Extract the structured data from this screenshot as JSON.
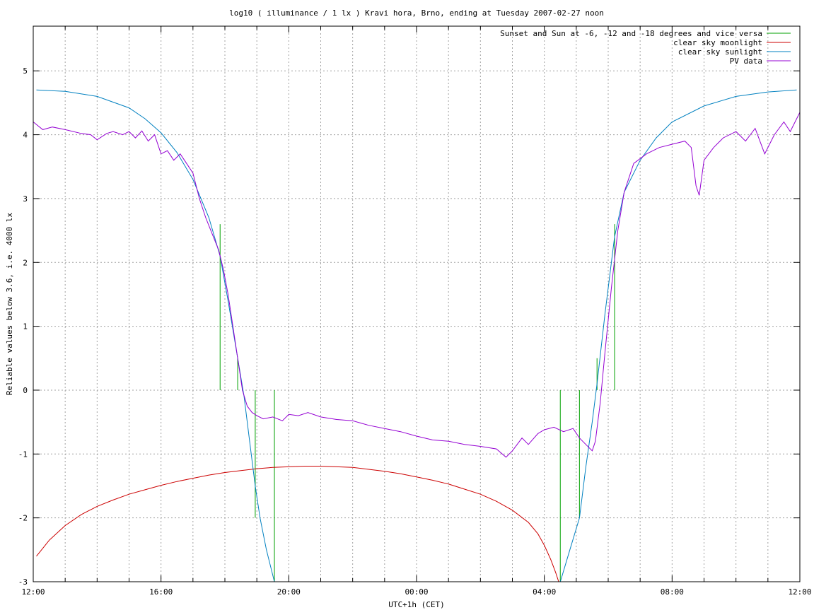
{
  "chart_data": {
    "type": "line",
    "title": "log10 ( illuminance / 1 lx ) Kravi hora, Brno, ending at Tuesday 2007-02-27 noon",
    "xlabel": "UTC+1h (CET)",
    "ylabel": "Reliable values below 3.6, i.e. 4000 lx",
    "xlim": [
      0,
      24
    ],
    "ylim": [
      -3,
      5.7
    ],
    "x_ticks": [
      {
        "v": 0,
        "label": "12:00"
      },
      {
        "v": 4,
        "label": "16:00"
      },
      {
        "v": 8,
        "label": "20:00"
      },
      {
        "v": 12,
        "label": "00:00"
      },
      {
        "v": 16,
        "label": "04:00"
      },
      {
        "v": 20,
        "label": "08:00"
      },
      {
        "v": 24,
        "label": "12:00"
      }
    ],
    "y_ticks": [
      {
        "v": -3,
        "label": "-3"
      },
      {
        "v": -2,
        "label": "-2"
      },
      {
        "v": -1,
        "label": "-1"
      },
      {
        "v": 0,
        "label": "0"
      },
      {
        "v": 1,
        "label": "1"
      },
      {
        "v": 2,
        "label": "2"
      },
      {
        "v": 3,
        "label": "3"
      },
      {
        "v": 4,
        "label": "4"
      },
      {
        "v": 5,
        "label": "5"
      }
    ],
    "grid": true,
    "legend_position": "top-right",
    "series": [
      {
        "name": "Sunset and Sun at -6, -12 and -18 degrees and vice versa",
        "color": "#00a000",
        "kind": "vlines",
        "segments": [
          {
            "x": 5.85,
            "y0": 0,
            "y1": 2.6
          },
          {
            "x": 6.4,
            "y0": 0,
            "y1": 0.5
          },
          {
            "x": 6.95,
            "y0": -2.0,
            "y1": 0
          },
          {
            "x": 7.55,
            "y0": -3,
            "y1": 0
          },
          {
            "x": 16.5,
            "y0": -3,
            "y1": 0
          },
          {
            "x": 17.1,
            "y0": -2.0,
            "y1": 0
          },
          {
            "x": 17.65,
            "y0": 0,
            "y1": 0.5
          },
          {
            "x": 18.2,
            "y0": 0,
            "y1": 2.6
          }
        ]
      },
      {
        "name": "clear sky moonlight",
        "color": "#cc0000",
        "kind": "line",
        "points": [
          [
            0.1,
            -2.6
          ],
          [
            0.5,
            -2.35
          ],
          [
            1.0,
            -2.12
          ],
          [
            1.5,
            -1.95
          ],
          [
            2.0,
            -1.82
          ],
          [
            2.5,
            -1.72
          ],
          [
            3.0,
            -1.63
          ],
          [
            3.5,
            -1.56
          ],
          [
            4.0,
            -1.49
          ],
          [
            4.5,
            -1.43
          ],
          [
            5.0,
            -1.38
          ],
          [
            5.5,
            -1.33
          ],
          [
            6.0,
            -1.29
          ],
          [
            6.5,
            -1.26
          ],
          [
            7.0,
            -1.23
          ],
          [
            7.5,
            -1.21
          ],
          [
            8.0,
            -1.2
          ],
          [
            8.5,
            -1.19
          ],
          [
            9.0,
            -1.19
          ],
          [
            9.5,
            -1.2
          ],
          [
            10.0,
            -1.21
          ],
          [
            10.5,
            -1.24
          ],
          [
            11.0,
            -1.27
          ],
          [
            11.5,
            -1.31
          ],
          [
            12.0,
            -1.36
          ],
          [
            12.5,
            -1.41
          ],
          [
            13.0,
            -1.47
          ],
          [
            13.5,
            -1.55
          ],
          [
            14.0,
            -1.63
          ],
          [
            14.5,
            -1.74
          ],
          [
            15.0,
            -1.88
          ],
          [
            15.5,
            -2.07
          ],
          [
            15.8,
            -2.25
          ],
          [
            16.0,
            -2.43
          ],
          [
            16.2,
            -2.65
          ],
          [
            16.35,
            -2.85
          ],
          [
            16.45,
            -3.0
          ]
        ]
      },
      {
        "name": "clear sky sunlight",
        "color": "#0080c0",
        "kind": "line",
        "points": [
          [
            0.1,
            4.7
          ],
          [
            1.0,
            4.68
          ],
          [
            2.0,
            4.6
          ],
          [
            3.0,
            4.42
          ],
          [
            3.5,
            4.25
          ],
          [
            4.0,
            4.03
          ],
          [
            4.5,
            3.72
          ],
          [
            5.0,
            3.3
          ],
          [
            5.5,
            2.7
          ],
          [
            5.85,
            2.1
          ],
          [
            6.1,
            1.4
          ],
          [
            6.4,
            0.5
          ],
          [
            6.6,
            -0.1
          ],
          [
            6.8,
            -0.9
          ],
          [
            6.95,
            -1.5
          ],
          [
            7.1,
            -2.0
          ],
          [
            7.3,
            -2.5
          ],
          [
            7.55,
            -3.0
          ],
          [
            16.5,
            -3.0
          ],
          [
            16.8,
            -2.5
          ],
          [
            17.1,
            -2.0
          ],
          [
            17.3,
            -1.2
          ],
          [
            17.5,
            -0.5
          ],
          [
            17.65,
            0.1
          ],
          [
            17.9,
            1.2
          ],
          [
            18.2,
            2.4
          ],
          [
            18.5,
            3.1
          ],
          [
            19.0,
            3.6
          ],
          [
            19.5,
            3.95
          ],
          [
            20.0,
            4.2
          ],
          [
            21.0,
            4.45
          ],
          [
            22.0,
            4.6
          ],
          [
            23.0,
            4.67
          ],
          [
            23.9,
            4.7
          ]
        ]
      },
      {
        "name": "PV data",
        "color": "#9400d3",
        "kind": "line",
        "points": [
          [
            0.0,
            4.2
          ],
          [
            0.3,
            4.08
          ],
          [
            0.6,
            4.12
          ],
          [
            1.0,
            4.08
          ],
          [
            1.5,
            4.02
          ],
          [
            1.8,
            4.0
          ],
          [
            2.0,
            3.92
          ],
          [
            2.3,
            4.02
          ],
          [
            2.5,
            4.05
          ],
          [
            2.8,
            4.0
          ],
          [
            3.0,
            4.05
          ],
          [
            3.2,
            3.95
          ],
          [
            3.4,
            4.06
          ],
          [
            3.6,
            3.9
          ],
          [
            3.8,
            4.0
          ],
          [
            4.0,
            3.7
          ],
          [
            4.2,
            3.75
          ],
          [
            4.4,
            3.6
          ],
          [
            4.6,
            3.7
          ],
          [
            4.8,
            3.55
          ],
          [
            5.0,
            3.4
          ],
          [
            5.2,
            3.0
          ],
          [
            5.4,
            2.7
          ],
          [
            5.6,
            2.45
          ],
          [
            5.8,
            2.2
          ],
          [
            5.95,
            1.9
          ],
          [
            6.1,
            1.5
          ],
          [
            6.25,
            1.0
          ],
          [
            6.4,
            0.5
          ],
          [
            6.55,
            0.0
          ],
          [
            6.7,
            -0.25
          ],
          [
            6.85,
            -0.35
          ],
          [
            7.0,
            -0.4
          ],
          [
            7.2,
            -0.45
          ],
          [
            7.5,
            -0.42
          ],
          [
            7.8,
            -0.48
          ],
          [
            8.0,
            -0.38
          ],
          [
            8.3,
            -0.4
          ],
          [
            8.6,
            -0.35
          ],
          [
            9.0,
            -0.42
          ],
          [
            9.5,
            -0.46
          ],
          [
            10.0,
            -0.48
          ],
          [
            10.5,
            -0.55
          ],
          [
            11.0,
            -0.6
          ],
          [
            11.5,
            -0.65
          ],
          [
            12.0,
            -0.72
          ],
          [
            12.5,
            -0.78
          ],
          [
            13.0,
            -0.8
          ],
          [
            13.5,
            -0.85
          ],
          [
            14.0,
            -0.88
          ],
          [
            14.5,
            -0.92
          ],
          [
            14.8,
            -1.05
          ],
          [
            15.0,
            -0.95
          ],
          [
            15.3,
            -0.75
          ],
          [
            15.5,
            -0.85
          ],
          [
            15.8,
            -0.68
          ],
          [
            16.0,
            -0.62
          ],
          [
            16.3,
            -0.58
          ],
          [
            16.6,
            -0.65
          ],
          [
            16.9,
            -0.6
          ],
          [
            17.1,
            -0.75
          ],
          [
            17.3,
            -0.85
          ],
          [
            17.5,
            -0.95
          ],
          [
            17.6,
            -0.8
          ],
          [
            17.75,
            -0.2
          ],
          [
            17.9,
            0.6
          ],
          [
            18.1,
            1.6
          ],
          [
            18.3,
            2.5
          ],
          [
            18.5,
            3.1
          ],
          [
            18.8,
            3.55
          ],
          [
            19.2,
            3.7
          ],
          [
            19.6,
            3.8
          ],
          [
            20.0,
            3.85
          ],
          [
            20.4,
            3.9
          ],
          [
            20.6,
            3.8
          ],
          [
            20.75,
            3.2
          ],
          [
            20.85,
            3.05
          ],
          [
            21.0,
            3.6
          ],
          [
            21.3,
            3.8
          ],
          [
            21.6,
            3.95
          ],
          [
            22.0,
            4.05
          ],
          [
            22.3,
            3.9
          ],
          [
            22.6,
            4.1
          ],
          [
            22.9,
            3.7
          ],
          [
            23.2,
            4.0
          ],
          [
            23.5,
            4.2
          ],
          [
            23.7,
            4.05
          ],
          [
            24.0,
            4.35
          ]
        ]
      }
    ]
  }
}
